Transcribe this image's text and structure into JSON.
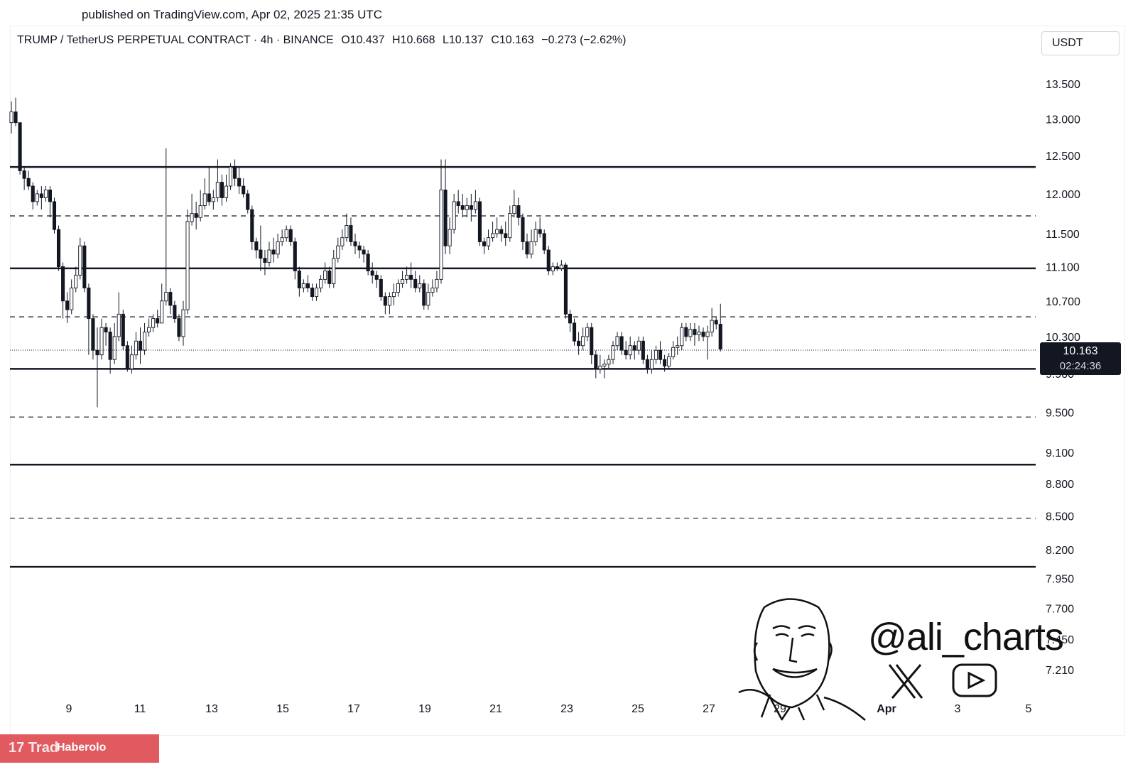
{
  "published_text": "published on TradingView.com, Apr 02, 2025 21:35 UTC",
  "header": {
    "symbol": "TRUMP / TetherUS PERPETUAL CONTRACT · 4h · BINANCE",
    "open": "O10.437",
    "high": "H10.668",
    "low": "L10.137",
    "close": "C10.163",
    "change": "−0.273 (−2.62%)"
  },
  "currency_button": "USDT",
  "price_box": {
    "price": "10.163",
    "countdown": "02:24:36"
  },
  "watermark": {
    "handle": "@ali_charts",
    "icons": [
      "face-illustration",
      "x-logo-icon",
      "youtube-icon"
    ]
  },
  "footer": {
    "source": "Haberolo",
    "logo": "tradingview-logo"
  },
  "colors": {
    "candle_up": "#ffffff",
    "candle_down": "#131722",
    "wick": "#131722",
    "level_line": "#131722",
    "footer_bg": "#e05a5f"
  },
  "chart_data": {
    "type": "candlestick",
    "interval": "4h",
    "x_tick_labels": [
      "9",
      "11",
      "13",
      "15",
      "17",
      "19",
      "21",
      "23",
      "25",
      "27",
      "29",
      "Apr",
      "3",
      "5"
    ],
    "y_tick_labels": [
      "13.500",
      "13.000",
      "12.500",
      "12.000",
      "11.500",
      "11.100",
      "10.700",
      "10.300",
      "9.900",
      "9.500",
      "9.100",
      "8.800",
      "8.500",
      "8.200",
      "7.950",
      "7.700",
      "7.450",
      "7.210"
    ],
    "y_scale": "log",
    "solid_levels": [
      12.35,
      11.08,
      9.95,
      8.98,
      8.05
    ],
    "dashed_levels": [
      11.72,
      10.52,
      9.45,
      8.48
    ],
    "last_price": 10.163,
    "candles": [
      [
        12.95,
        13.1,
        13.25,
        12.8
      ],
      [
        13.1,
        12.95,
        13.3,
        12.9
      ],
      [
        12.95,
        12.3,
        12.95,
        12.25
      ],
      [
        12.3,
        12.2,
        12.35,
        12.05
      ],
      [
        12.2,
        12.1,
        12.3,
        12.05
      ],
      [
        12.1,
        11.9,
        12.15,
        11.8
      ],
      [
        11.9,
        12.0,
        12.05,
        11.85
      ],
      [
        12.0,
        11.95,
        12.1,
        11.8
      ],
      [
        11.95,
        12.05,
        12.1,
        11.9
      ],
      [
        12.05,
        11.9,
        12.1,
        11.7
      ],
      [
        11.9,
        11.55,
        11.95,
        11.5
      ],
      [
        11.55,
        11.1,
        11.6,
        11.05
      ],
      [
        11.1,
        10.7,
        11.15,
        10.5
      ],
      [
        10.7,
        10.6,
        10.8,
        10.45
      ],
      [
        10.6,
        10.85,
        10.95,
        10.55
      ],
      [
        10.85,
        11.0,
        11.1,
        10.8
      ],
      [
        11.0,
        11.35,
        11.45,
        10.95
      ],
      [
        11.35,
        10.85,
        11.4,
        10.8
      ],
      [
        10.85,
        10.5,
        10.9,
        10.1
      ],
      [
        10.5,
        10.15,
        10.55,
        10.05
      ],
      [
        10.15,
        10.1,
        10.4,
        9.55
      ],
      [
        10.1,
        10.4,
        10.5,
        10.05
      ],
      [
        10.4,
        10.35,
        10.45,
        10.2
      ],
      [
        10.35,
        10.05,
        10.4,
        9.9
      ],
      [
        10.05,
        10.3,
        10.45,
        10.0
      ],
      [
        10.3,
        10.55,
        10.8,
        10.25
      ],
      [
        10.55,
        10.2,
        10.6,
        10.15
      ],
      [
        10.2,
        9.95,
        10.25,
        9.92
      ],
      [
        9.95,
        10.1,
        10.2,
        9.9
      ],
      [
        10.1,
        10.25,
        10.35,
        10.05
      ],
      [
        10.25,
        10.15,
        10.4,
        10.0
      ],
      [
        10.15,
        10.35,
        10.45,
        10.1
      ],
      [
        10.35,
        10.4,
        10.5,
        10.3
      ],
      [
        10.4,
        10.5,
        10.55,
        10.35
      ],
      [
        10.5,
        10.45,
        10.6,
        10.4
      ],
      [
        10.45,
        10.7,
        10.9,
        10.45
      ],
      [
        10.7,
        10.8,
        12.6,
        10.65
      ],
      [
        10.8,
        10.65,
        10.85,
        10.55
      ],
      [
        10.65,
        10.5,
        10.7,
        10.45
      ],
      [
        10.5,
        10.3,
        10.55,
        10.25
      ],
      [
        10.3,
        10.6,
        10.7,
        10.2
      ],
      [
        10.6,
        11.65,
        11.8,
        10.55
      ],
      [
        11.65,
        11.75,
        12.0,
        11.6
      ],
      [
        11.75,
        11.7,
        11.9,
        11.55
      ],
      [
        11.7,
        11.85,
        12.05,
        11.65
      ],
      [
        11.85,
        12.0,
        12.2,
        11.8
      ],
      [
        12.0,
        11.9,
        12.35,
        11.85
      ],
      [
        11.9,
        11.95,
        12.05,
        11.8
      ],
      [
        11.95,
        12.15,
        12.45,
        11.9
      ],
      [
        12.15,
        11.95,
        12.25,
        11.85
      ],
      [
        11.95,
        12.1,
        12.25,
        11.9
      ],
      [
        12.1,
        12.35,
        12.4,
        12.05
      ],
      [
        12.35,
        12.2,
        12.45,
        12.1
      ],
      [
        12.2,
        12.1,
        12.35,
        12.0
      ],
      [
        12.1,
        12.0,
        12.2,
        11.95
      ],
      [
        12.0,
        11.8,
        12.05,
        11.75
      ],
      [
        11.8,
        11.4,
        11.85,
        11.3
      ],
      [
        11.4,
        11.3,
        11.45,
        11.2
      ],
      [
        11.3,
        11.2,
        11.6,
        11.05
      ],
      [
        11.2,
        11.15,
        11.3,
        11.0
      ],
      [
        11.15,
        11.3,
        11.4,
        11.1
      ],
      [
        11.3,
        11.25,
        11.45,
        11.15
      ],
      [
        11.25,
        11.4,
        11.5,
        11.2
      ],
      [
        11.4,
        11.45,
        11.55,
        11.35
      ],
      [
        11.45,
        11.55,
        11.6,
        11.4
      ],
      [
        11.55,
        11.4,
        11.6,
        11.35
      ],
      [
        11.4,
        11.05,
        11.45,
        10.95
      ],
      [
        11.05,
        10.85,
        11.1,
        10.75
      ],
      [
        10.85,
        10.9,
        10.95,
        10.8
      ],
      [
        10.9,
        10.85,
        11.0,
        10.8
      ],
      [
        10.85,
        10.75,
        10.9,
        10.7
      ],
      [
        10.75,
        10.85,
        10.9,
        10.7
      ],
      [
        10.85,
        10.95,
        11.0,
        10.8
      ],
      [
        10.95,
        11.05,
        11.15,
        10.9
      ],
      [
        11.05,
        10.9,
        11.1,
        10.85
      ],
      [
        10.9,
        11.2,
        11.3,
        10.85
      ],
      [
        11.2,
        11.35,
        11.45,
        11.15
      ],
      [
        11.35,
        11.45,
        11.55,
        11.3
      ],
      [
        11.45,
        11.6,
        11.75,
        11.4
      ],
      [
        11.6,
        11.4,
        11.7,
        11.35
      ],
      [
        11.4,
        11.35,
        11.5,
        11.25
      ],
      [
        11.35,
        11.3,
        11.4,
        11.2
      ],
      [
        11.3,
        11.25,
        11.35,
        11.15
      ],
      [
        11.25,
        11.05,
        11.3,
        11.0
      ],
      [
        11.05,
        11.0,
        11.15,
        10.9
      ],
      [
        11.0,
        10.95,
        11.05,
        10.85
      ],
      [
        10.95,
        10.75,
        11.0,
        10.7
      ],
      [
        10.75,
        10.65,
        10.8,
        10.55
      ],
      [
        10.65,
        10.75,
        10.8,
        10.55
      ],
      [
        10.75,
        10.8,
        10.9,
        10.65
      ],
      [
        10.8,
        10.9,
        10.95,
        10.75
      ],
      [
        10.9,
        10.95,
        11.05,
        10.85
      ],
      [
        10.95,
        11.0,
        11.1,
        10.9
      ],
      [
        11.0,
        10.95,
        11.15,
        10.85
      ],
      [
        10.95,
        10.85,
        11.05,
        10.8
      ],
      [
        10.85,
        10.9,
        11.0,
        10.8
      ],
      [
        10.9,
        10.65,
        10.95,
        10.6
      ],
      [
        10.65,
        10.8,
        10.9,
        10.6
      ],
      [
        10.8,
        10.85,
        10.95,
        10.75
      ],
      [
        10.85,
        10.95,
        11.05,
        10.8
      ],
      [
        10.95,
        12.05,
        12.45,
        10.9
      ],
      [
        12.05,
        11.35,
        12.45,
        11.25
      ],
      [
        11.35,
        11.55,
        11.7,
        11.25
      ],
      [
        11.55,
        11.9,
        12.0,
        11.5
      ],
      [
        11.9,
        11.85,
        12.05,
        11.75
      ],
      [
        11.85,
        11.8,
        12.0,
        11.7
      ],
      [
        11.8,
        11.85,
        11.95,
        11.7
      ],
      [
        11.85,
        11.8,
        12.0,
        11.65
      ],
      [
        11.8,
        11.9,
        12.05,
        11.75
      ],
      [
        11.9,
        11.4,
        11.95,
        11.35
      ],
      [
        11.4,
        11.35,
        11.45,
        11.25
      ],
      [
        11.35,
        11.45,
        11.55,
        11.3
      ],
      [
        11.45,
        11.5,
        11.65,
        11.4
      ],
      [
        11.5,
        11.55,
        11.7,
        11.45
      ],
      [
        11.55,
        11.5,
        11.6,
        11.4
      ],
      [
        11.5,
        11.45,
        11.65,
        11.35
      ],
      [
        11.45,
        11.75,
        11.85,
        11.4
      ],
      [
        11.75,
        11.85,
        12.05,
        11.7
      ],
      [
        11.85,
        11.7,
        11.95,
        11.6
      ],
      [
        11.7,
        11.4,
        11.75,
        11.3
      ],
      [
        11.4,
        11.25,
        11.5,
        11.2
      ],
      [
        11.25,
        11.4,
        11.55,
        11.2
      ],
      [
        11.4,
        11.55,
        11.65,
        11.35
      ],
      [
        11.55,
        11.5,
        11.7,
        11.45
      ],
      [
        11.5,
        11.3,
        11.55,
        11.25
      ],
      [
        11.3,
        11.05,
        11.35,
        11.0
      ],
      [
        11.05,
        11.1,
        11.15,
        11.0
      ],
      [
        11.1,
        11.08,
        11.15,
        11.05
      ],
      [
        11.08,
        11.12,
        11.18,
        11.05
      ],
      [
        11.12,
        10.55,
        11.15,
        10.5
      ],
      [
        10.55,
        10.45,
        10.6,
        10.35
      ],
      [
        10.45,
        10.25,
        10.5,
        10.2
      ],
      [
        10.25,
        10.2,
        10.35,
        10.1
      ],
      [
        10.2,
        10.3,
        10.4,
        10.15
      ],
      [
        10.3,
        10.4,
        10.45,
        10.25
      ],
      [
        10.4,
        10.1,
        10.45,
        10.0
      ],
      [
        10.1,
        9.95,
        10.15,
        9.85
      ],
      [
        9.95,
        9.98,
        10.1,
        9.9
      ],
      [
        9.98,
        10.0,
        10.05,
        9.85
      ],
      [
        10.0,
        10.05,
        10.1,
        9.95
      ],
      [
        10.05,
        10.2,
        10.25,
        10.0
      ],
      [
        10.2,
        10.3,
        10.35,
        10.15
      ],
      [
        10.3,
        10.15,
        10.35,
        10.1
      ],
      [
        10.15,
        10.1,
        10.25,
        10.05
      ],
      [
        10.1,
        10.2,
        10.3,
        10.05
      ],
      [
        10.2,
        10.15,
        10.25,
        10.05
      ],
      [
        10.15,
        10.25,
        10.3,
        10.1
      ],
      [
        10.25,
        10.05,
        10.3,
        10.0
      ],
      [
        10.05,
        9.95,
        10.1,
        9.9
      ],
      [
        9.95,
        10.05,
        10.15,
        9.9
      ],
      [
        10.05,
        10.15,
        10.2,
        10.0
      ],
      [
        10.15,
        10.05,
        10.25,
        10.0
      ],
      [
        10.05,
        9.98,
        10.1,
        9.92
      ],
      [
        9.98,
        10.08,
        10.12,
        9.95
      ],
      [
        10.08,
        10.18,
        10.25,
        10.05
      ],
      [
        10.18,
        10.2,
        10.3,
        10.1
      ],
      [
        10.2,
        10.4,
        10.45,
        10.15
      ],
      [
        10.4,
        10.3,
        10.45,
        10.25
      ],
      [
        10.3,
        10.38,
        10.45,
        10.25
      ],
      [
        10.38,
        10.32,
        10.45,
        10.2
      ],
      [
        10.32,
        10.35,
        10.42,
        10.25
      ],
      [
        10.35,
        10.3,
        10.4,
        10.25
      ],
      [
        10.3,
        10.35,
        10.42,
        10.05
      ],
      [
        10.35,
        10.48,
        10.62,
        10.3
      ],
      [
        10.48,
        10.44,
        10.52,
        10.38
      ],
      [
        10.437,
        10.163,
        10.668,
        10.137
      ]
    ]
  }
}
